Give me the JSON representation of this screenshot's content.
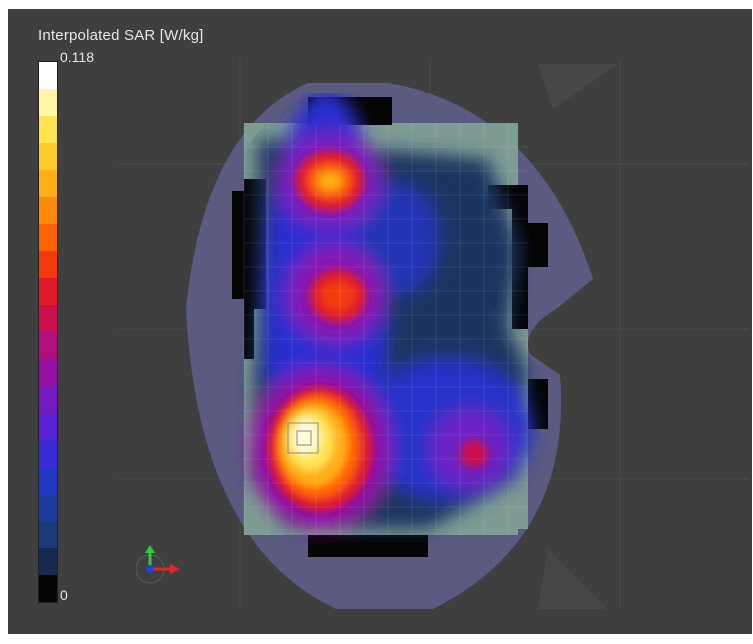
{
  "legend": {
    "title": "Interpolated SAR [W/kg]",
    "max_label": "0.118",
    "min_label": "0",
    "colors": [
      "#ffffff",
      "#fff6a8",
      "#ffe452",
      "#ffcb2a",
      "#ffae14",
      "#ff8a07",
      "#ff6203",
      "#f33a08",
      "#e01a2a",
      "#c9114f",
      "#b00f80",
      "#9411a4",
      "#741bc0",
      "#5a22d6",
      "#3a2bd8",
      "#2437c2",
      "#1f3d9e",
      "#1c3978",
      "#17294f",
      "#050505"
    ]
  },
  "viewport": {
    "background": "#3f3f3f",
    "icons": [
      "axis-triad-icon"
    ]
  }
}
